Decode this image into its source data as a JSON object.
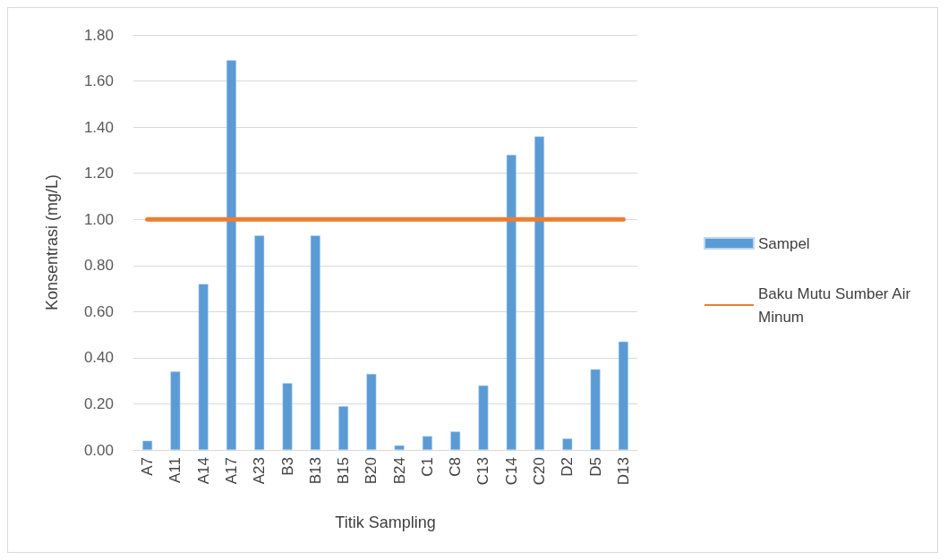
{
  "chart_data": {
    "type": "bar",
    "xlabel": "Titik Sampling",
    "ylabel": "Konsentrasi (mg/L)",
    "categories": [
      "A7",
      "A11",
      "A14",
      "A17",
      "A23",
      "B3",
      "B13",
      "B15",
      "B20",
      "B24",
      "C1",
      "C8",
      "C13",
      "C14",
      "C20",
      "D2",
      "D5",
      "D13"
    ],
    "series": [
      {
        "name": "Sampel",
        "color": "#5b9bd5",
        "values": [
          0.04,
          0.34,
          0.72,
          1.69,
          0.93,
          0.29,
          0.93,
          0.19,
          0.33,
          0.02,
          0.06,
          0.08,
          0.28,
          1.28,
          1.36,
          0.05,
          0.35,
          0.47
        ]
      },
      {
        "name": "Baku Mutu Sumber Air Minum",
        "type": "line",
        "color": "#ed7d31",
        "values": [
          1.0,
          1.0,
          1.0,
          1.0,
          1.0,
          1.0,
          1.0,
          1.0,
          1.0,
          1.0,
          1.0,
          1.0,
          1.0,
          1.0,
          1.0,
          1.0,
          1.0,
          1.0
        ]
      }
    ],
    "ylim": [
      0,
      1.8
    ],
    "yticks": [
      {
        "value": 0,
        "label": "0.00"
      },
      {
        "value": 0.2,
        "label": "0.20"
      },
      {
        "value": 0.4,
        "label": "0.40"
      },
      {
        "value": 0.6,
        "label": "0.60"
      },
      {
        "value": 0.8,
        "label": "0.80"
      },
      {
        "value": 1.0,
        "label": "1.00"
      },
      {
        "value": 1.2,
        "label": "1.20"
      },
      {
        "value": 1.4,
        "label": "1.40"
      },
      {
        "value": 1.6,
        "label": "1.60"
      },
      {
        "value": 1.8,
        "label": "1.80"
      }
    ],
    "grid": "y",
    "legend": "right",
    "marker": "none",
    "line_style": "solid"
  }
}
